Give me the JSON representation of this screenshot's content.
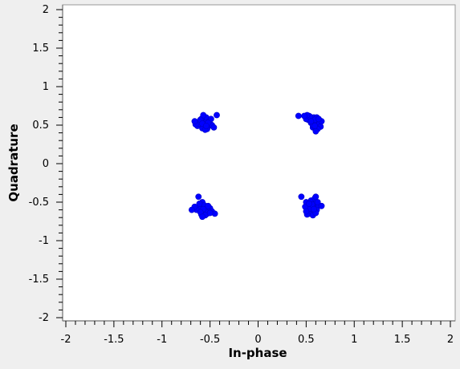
{
  "chart_data": {
    "type": "scatter",
    "title": "",
    "xlabel": "In-phase",
    "ylabel": "Quadrature",
    "xlim": [
      -2,
      2
    ],
    "ylim": [
      -2,
      2
    ],
    "xticks": [
      "-2",
      "-1.5",
      "-1",
      "-0.5",
      "0",
      "0.5",
      "1",
      "1.5",
      "2"
    ],
    "yticks": [
      "2",
      "1.5",
      "1",
      "0.5",
      "0",
      "-0.5",
      "-1",
      "-1.5",
      "-2"
    ],
    "grid": false,
    "point_color": "#0000ff",
    "series": [
      {
        "points": [
          [
            -0.55,
            0.53
          ],
          [
            -0.6,
            0.5
          ],
          [
            -0.52,
            0.48
          ],
          [
            -0.57,
            0.56
          ],
          [
            -0.5,
            0.52
          ],
          [
            -0.62,
            0.54
          ],
          [
            -0.58,
            0.46
          ],
          [
            -0.54,
            0.6
          ],
          [
            -0.48,
            0.5
          ],
          [
            -0.63,
            0.49
          ],
          [
            -0.56,
            0.51
          ],
          [
            -0.59,
            0.58
          ],
          [
            -0.53,
            0.45
          ],
          [
            -0.61,
            0.52
          ],
          [
            -0.51,
            0.55
          ],
          [
            -0.57,
            0.63
          ],
          [
            -0.65,
            0.51
          ],
          [
            -0.46,
            0.47
          ],
          [
            -0.55,
            0.44
          ],
          [
            -0.6,
            0.57
          ],
          [
            -0.49,
            0.58
          ],
          [
            -0.66,
            0.55
          ],
          [
            -0.52,
            0.53
          ],
          [
            -0.58,
            0.52
          ],
          [
            -0.54,
            0.49
          ],
          [
            -0.43,
            0.63
          ],
          [
            0.55,
            0.53
          ],
          [
            0.6,
            0.5
          ],
          [
            0.58,
            0.6
          ],
          [
            0.52,
            0.57
          ],
          [
            0.62,
            0.55
          ],
          [
            0.57,
            0.47
          ],
          [
            0.64,
            0.52
          ],
          [
            0.53,
            0.62
          ],
          [
            0.6,
            0.44
          ],
          [
            0.56,
            0.56
          ],
          [
            0.61,
            0.6
          ],
          [
            0.5,
            0.58
          ],
          [
            0.65,
            0.48
          ],
          [
            0.58,
            0.53
          ],
          [
            0.54,
            0.61
          ],
          [
            0.62,
            0.45
          ],
          [
            0.59,
            0.57
          ],
          [
            0.66,
            0.55
          ],
          [
            0.51,
            0.63
          ],
          [
            0.57,
            0.5
          ],
          [
            0.63,
            0.58
          ],
          [
            0.6,
            0.42
          ],
          [
            0.55,
            0.55
          ],
          [
            0.48,
            0.62
          ],
          [
            0.59,
            0.49
          ],
          [
            0.42,
            0.62
          ],
          [
            -0.55,
            -0.58
          ],
          [
            -0.6,
            -0.55
          ],
          [
            -0.57,
            -0.62
          ],
          [
            -0.52,
            -0.6
          ],
          [
            -0.62,
            -0.57
          ],
          [
            -0.58,
            -0.5
          ],
          [
            -0.53,
            -0.65
          ],
          [
            -0.5,
            -0.58
          ],
          [
            -0.59,
            -0.66
          ],
          [
            -0.56,
            -0.54
          ],
          [
            -0.64,
            -0.6
          ],
          [
            -0.54,
            -0.63
          ],
          [
            -0.61,
            -0.52
          ],
          [
            -0.48,
            -0.62
          ],
          [
            -0.57,
            -0.59
          ],
          [
            -0.66,
            -0.56
          ],
          [
            -0.55,
            -0.67
          ],
          [
            -0.52,
            -0.55
          ],
          [
            -0.6,
            -0.63
          ],
          [
            -0.69,
            -0.6
          ],
          [
            -0.45,
            -0.65
          ],
          [
            -0.62,
            -0.43
          ],
          [
            -0.58,
            -0.69
          ],
          [
            -0.5,
            -0.64
          ],
          [
            0.55,
            -0.55
          ],
          [
            0.52,
            -0.6
          ],
          [
            0.6,
            -0.57
          ],
          [
            0.57,
            -0.52
          ],
          [
            0.53,
            -0.65
          ],
          [
            0.63,
            -0.55
          ],
          [
            0.5,
            -0.5
          ],
          [
            0.58,
            -0.62
          ],
          [
            0.55,
            -0.48
          ],
          [
            0.61,
            -0.6
          ],
          [
            0.54,
            -0.58
          ],
          [
            0.59,
            -0.45
          ],
          [
            0.51,
            -0.66
          ],
          [
            0.57,
            -0.67
          ],
          [
            0.62,
            -0.5
          ],
          [
            0.49,
            -0.56
          ],
          [
            0.56,
            -0.53
          ],
          [
            0.6,
            -0.64
          ],
          [
            0.53,
            -0.52
          ],
          [
            0.66,
            -0.55
          ],
          [
            0.45,
            -0.43
          ],
          [
            0.6,
            -0.43
          ],
          [
            0.58,
            -0.59
          ],
          [
            0.5,
            -0.62
          ]
        ]
      }
    ]
  }
}
